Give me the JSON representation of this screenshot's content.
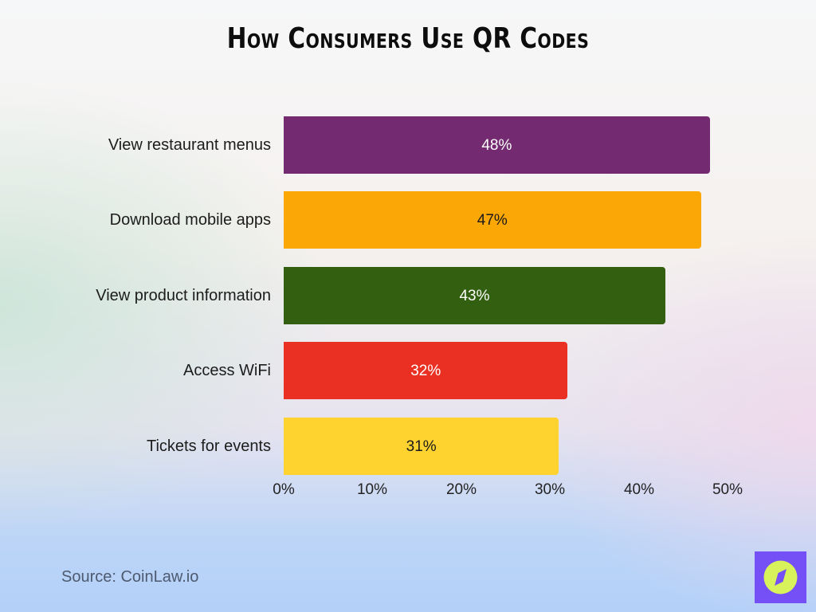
{
  "chart_data": {
    "type": "bar",
    "orientation": "horizontal",
    "title": "How Consumers Use QR Codes",
    "categories": [
      "View restaurant menus",
      "Download mobile apps",
      "View product information",
      "Access WiFi",
      "Tickets for events"
    ],
    "values": [
      48,
      47,
      43,
      32,
      31
    ],
    "value_labels": [
      "48%",
      "47%",
      "43%",
      "32%",
      "31%"
    ],
    "bar_colors": [
      "#732a70",
      "#fba706",
      "#335f11",
      "#e93023",
      "#fed330"
    ],
    "label_colors": [
      "#ffffff",
      "#1a1a1a",
      "#ffffff",
      "#ffffff",
      "#1a1a1a"
    ],
    "xlabel": "",
    "ylabel": "",
    "xlim": [
      0,
      50
    ],
    "x_ticks": [
      "0%",
      "10%",
      "20%",
      "30%",
      "40%",
      "50%"
    ],
    "grid": false,
    "legend": null
  },
  "footer": {
    "source": "Source: CoinLaw.io",
    "logo_icon": "compass-icon",
    "logo_bg": "#7550f6",
    "logo_fg": "#d7f25a"
  }
}
